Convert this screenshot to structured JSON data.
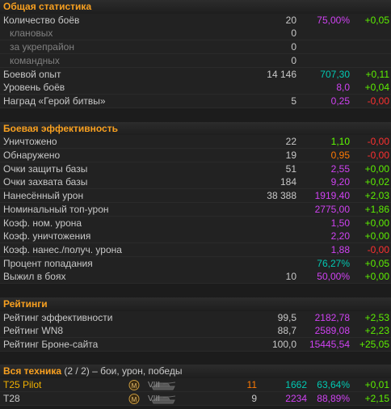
{
  "sections": [
    {
      "title": "Общая статистика",
      "rows": [
        {
          "label": "Количество боёв",
          "count": "20",
          "avg": "75,00%",
          "delta": "+0,05"
        },
        {
          "label": "клановых",
          "count": "0"
        },
        {
          "label": "за укрепрайон",
          "count": "0"
        },
        {
          "label": "командных",
          "count": "0"
        },
        {
          "label": "Боевой опыт",
          "count": "14 146",
          "avg": "707,30",
          "delta": "+0,11"
        },
        {
          "label": "Уровень боёв",
          "avg": "8,0",
          "delta": "+0,04"
        },
        {
          "label": "Наград «Герой битвы»",
          "count": "5",
          "avg": "0,25",
          "delta": "-0,00"
        }
      ]
    },
    {
      "title": "Боевая эффективность",
      "rows": [
        {
          "label": "Уничтожено",
          "count": "22",
          "avg": "1,10",
          "delta": "-0,00"
        },
        {
          "label": "Обнаружено",
          "count": "19",
          "avg": "0,95",
          "delta": "-0,00"
        },
        {
          "label": "Очки защиты базы",
          "count": "51",
          "avg": "2,55",
          "delta": "+0,00"
        },
        {
          "label": "Очки захвата базы",
          "count": "184",
          "avg": "9,20",
          "delta": "+0,02"
        },
        {
          "label": "Нанесённый урон",
          "count": "38 388",
          "avg": "1919,40",
          "delta": "+2,03"
        },
        {
          "label": "Номинальный топ-урон",
          "avg": "2775,00",
          "delta": "+1,86"
        },
        {
          "label": "Коэф. ном. урона",
          "avg": "1,50",
          "delta": "+0,00"
        },
        {
          "label": "Коэф. уничтожения",
          "avg": "2,20",
          "delta": "+0,00"
        },
        {
          "label": "Коэф. нанес./получ. урона",
          "avg": "1,88",
          "delta": "-0,00"
        },
        {
          "label": "Процент попадания",
          "avg": "76,27%",
          "delta": "+0,05"
        },
        {
          "label": "Выжил в боях",
          "count": "10",
          "avg": "50,00%",
          "delta": "+0,00"
        }
      ]
    },
    {
      "title": "Рейтинги",
      "rows": [
        {
          "label": "Рейтинг эффективности",
          "count": "99,5",
          "avg": "2182,78",
          "delta": "+2,53"
        },
        {
          "label": "Рейтинг WN8",
          "count": "88,7",
          "avg": "2589,08",
          "delta": "+2,23"
        },
        {
          "label": "Рейтинг Броне-сайта",
          "count": "100,0",
          "avg": "15445,54",
          "delta": "+25,05"
        }
      ]
    }
  ],
  "vehicles": {
    "title": "Вся техника",
    "count": "(2 / 2)",
    "subtitle": "– бои, урон, победы",
    "rows": [
      {
        "name": "T25 Pilot",
        "tier": "VIII",
        "battles": "11",
        "damage": "1662",
        "win_rate": "63,64%",
        "delta": "+0,01"
      },
      {
        "name": "T28",
        "tier": "VIII",
        "battles": "9",
        "damage": "2234",
        "win_rate": "88,89%",
        "delta": "+2,15"
      }
    ]
  }
}
